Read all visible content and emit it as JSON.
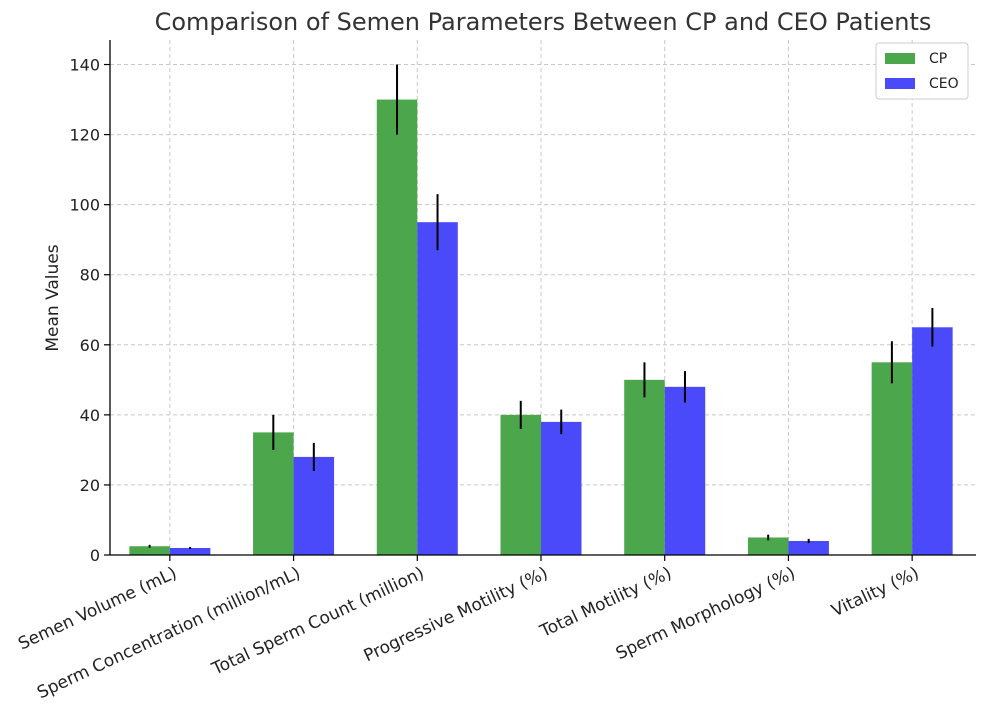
{
  "chart_data": {
    "type": "bar",
    "title": "Comparison of Semen Parameters Between CP and CEO Patients",
    "xlabel": "",
    "ylabel": "Mean Values",
    "ylim": [
      0,
      147
    ],
    "yticks": [
      0,
      20,
      40,
      60,
      80,
      100,
      120,
      140
    ],
    "grid": true,
    "legend_position": "top-right",
    "categories": [
      "Semen Volume (mL)",
      "Sperm Concentration (million/mL)",
      "Total Sperm Count (million)",
      "Progressive Motility (%)",
      "Total Motility (%)",
      "Sperm Morphology (%)",
      "Vitality (%)"
    ],
    "series": [
      {
        "name": "CP",
        "color": "#4ca64c",
        "values": [
          2.5,
          35,
          130,
          40,
          50,
          5,
          55
        ],
        "errors": [
          0.4,
          5,
          10,
          4,
          5,
          0.8,
          6
        ]
      },
      {
        "name": "CEO",
        "color": "#4a4afb",
        "values": [
          2.0,
          28,
          95,
          38,
          48,
          4,
          65
        ],
        "errors": [
          0.3,
          4,
          8,
          3.5,
          4.5,
          0.6,
          5.5
        ]
      }
    ]
  }
}
